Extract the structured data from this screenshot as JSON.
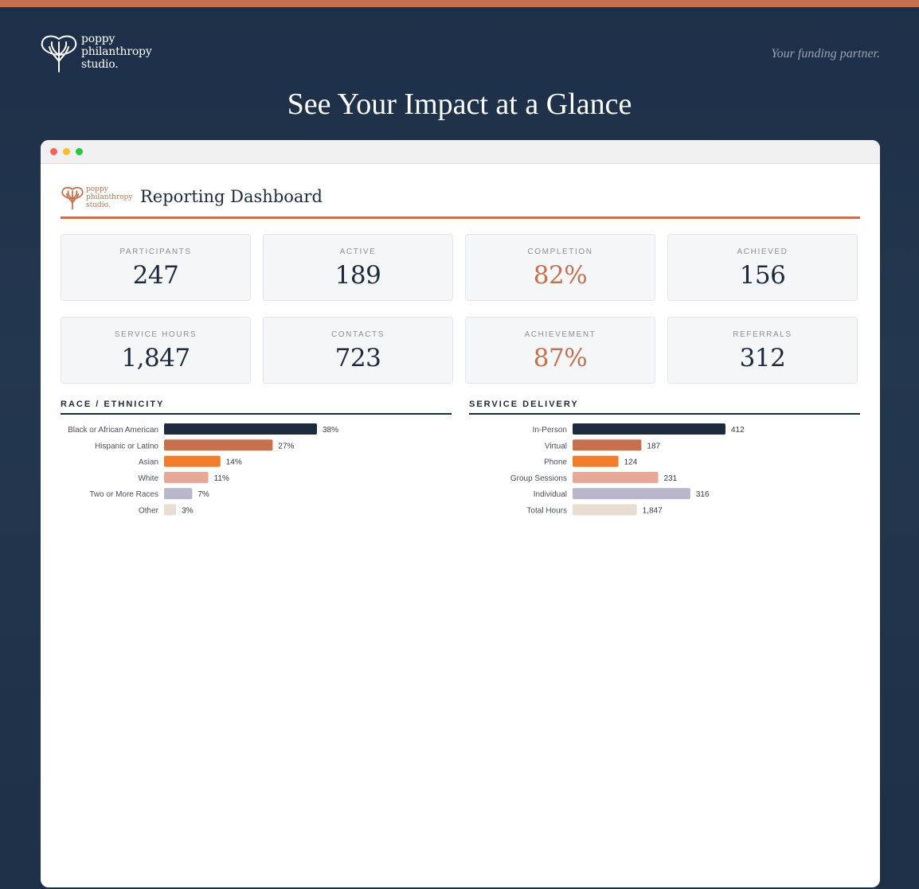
{
  "brand": {
    "logo_lines": [
      "poppy",
      "philanthropy",
      "studio."
    ],
    "tagline": "Your funding partner.",
    "hero_title": "See Your Impact at a Glance"
  },
  "dashboard": {
    "logo_lines": [
      "poppy",
      "philanthropy",
      "studio."
    ],
    "title": "Reporting Dashboard"
  },
  "kpis": [
    {
      "label": "PARTICIPANTS",
      "value": "247",
      "accent": false
    },
    {
      "label": "ACTIVE",
      "value": "189",
      "accent": false
    },
    {
      "label": "COMPLETION",
      "value": "82%",
      "accent": true
    },
    {
      "label": "ACHIEVED",
      "value": "156",
      "accent": false
    },
    {
      "label": "SERVICE HOURS",
      "value": "1,847",
      "accent": false
    },
    {
      "label": "CONTACTS",
      "value": "723",
      "accent": false
    },
    {
      "label": "ACHIEVEMENT",
      "value": "87%",
      "accent": true
    },
    {
      "label": "REFERRALS",
      "value": "312",
      "accent": false
    }
  ],
  "colors": {
    "navy": "#1c2a3e",
    "terracotta": "#c4714f",
    "orange": "#f07c2c",
    "blush": "#e8a898",
    "lavender": "#b9b6cc",
    "sand": "#e8ddd3"
  },
  "chart_data": [
    {
      "type": "bar",
      "orientation": "horizontal",
      "title": "RACE / ETHNICITY",
      "categories": [
        "Black or African American",
        "Hispanic or Latino",
        "Asian",
        "White",
        "Two or More Races",
        "Other"
      ],
      "values": [
        38,
        27,
        14,
        11,
        7,
        3
      ],
      "value_labels": [
        "38%",
        "27%",
        "14%",
        "11%",
        "7%",
        "3%"
      ],
      "colors": [
        "#1c2a3e",
        "#c4714f",
        "#f07c2c",
        "#e8a898",
        "#b9b6cc",
        "#e8ddd3"
      ],
      "xlim": [
        0,
        100
      ],
      "grid": false
    },
    {
      "type": "bar",
      "orientation": "horizontal",
      "title": "SERVICE DELIVERY",
      "categories": [
        "In-Person",
        "Virtual",
        "Phone",
        "Group Sessions",
        "Individual",
        "Total Hours"
      ],
      "values": [
        412,
        187,
        124,
        231,
        316,
        1847
      ],
      "value_labels": [
        "412",
        "187",
        "124",
        "231",
        "316",
        "1,847"
      ],
      "colors": [
        "#1c2a3e",
        "#c4714f",
        "#f07c2c",
        "#e8a898",
        "#b9b6cc",
        "#e8ddd3"
      ],
      "bar_values_relative": [
        100,
        45,
        30,
        56,
        77,
        42
      ],
      "grid": false
    }
  ]
}
